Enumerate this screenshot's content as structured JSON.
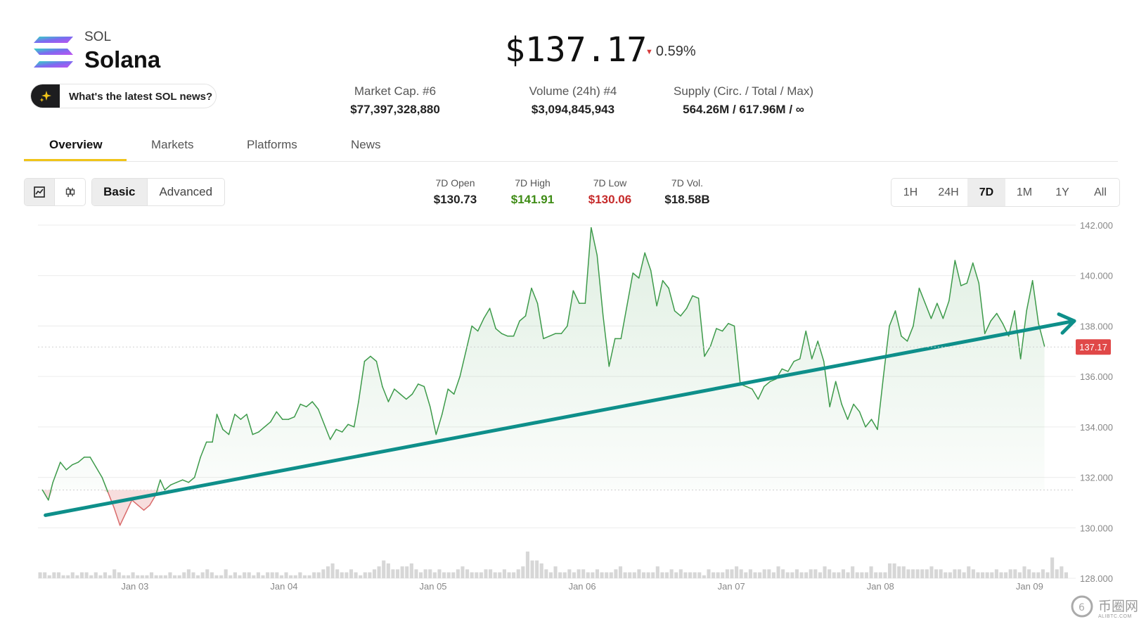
{
  "coin": {
    "symbol": "SOL",
    "name": "Solana",
    "news_prompt": "What's the latest SOL news?"
  },
  "price": {
    "value": "$137.17",
    "change": "0.59%",
    "direction": "down"
  },
  "stats": [
    {
      "label": "Market Cap. #6",
      "value": "$77,397,328,880"
    },
    {
      "label": "Volume (24h) #4",
      "value": "$3,094,845,943"
    },
    {
      "label": "Supply (Circ. / Total / Max)",
      "value": "564.26M / 617.96M / ∞"
    }
  ],
  "tabs": [
    "Overview",
    "Markets",
    "Platforms",
    "News"
  ],
  "active_tab": "Overview",
  "chart_type_toggle": {
    "icons": [
      "line-chart-icon",
      "candlestick-icon"
    ],
    "selected": "line-chart-icon"
  },
  "mode_toggle": {
    "options": [
      "Basic",
      "Advanced"
    ],
    "selected": "Basic"
  },
  "ohlc": [
    {
      "label": "7D Open",
      "value": "$130.73",
      "tone": "neutral"
    },
    {
      "label": "7D High",
      "value": "$141.91",
      "tone": "green"
    },
    {
      "label": "7D Low",
      "value": "$130.06",
      "tone": "red"
    },
    {
      "label": "7D Vol.",
      "value": "$18.58B",
      "tone": "neutral"
    }
  ],
  "ranges": [
    "1H",
    "24H",
    "7D",
    "1M",
    "1Y",
    "All"
  ],
  "selected_range": "7D",
  "colors": {
    "up_line": "#3d9a4a",
    "down_line": "#d96b6b",
    "trend_arrow": "#0e8f8a",
    "price_tag": "#e04848",
    "tab_accent": "#f0c419",
    "high_green": "#3f8c16",
    "low_red": "#c62b2b"
  },
  "chart_data": {
    "type": "line",
    "title": "",
    "ylim": [
      128,
      142
    ],
    "y_ticks": [
      "142.000",
      "140.000",
      "138.000",
      "136.000",
      "134.000",
      "132.000",
      "130.000",
      "128.000"
    ],
    "x_ticks": [
      "Jan 03",
      "Jan 04",
      "Jan 05",
      "Jan 06",
      "Jan 07",
      "Jan 08",
      "Jan 09"
    ],
    "x_tick_positions": [
      1,
      2,
      3,
      4,
      5,
      6,
      7
    ],
    "xlim": [
      0.35,
      7.3
    ],
    "current_price_tag": "137.17",
    "baseline_price": 131.5,
    "grid": true,
    "series": [
      {
        "values": [
          [
            0.38,
            131.5
          ],
          [
            0.42,
            131.1
          ],
          [
            0.45,
            131.8
          ],
          [
            0.5,
            132.6
          ],
          [
            0.54,
            132.3
          ],
          [
            0.58,
            132.5
          ],
          [
            0.62,
            132.6
          ],
          [
            0.66,
            132.8
          ],
          [
            0.7,
            132.8
          ],
          [
            0.74,
            132.4
          ],
          [
            0.78,
            132.0
          ],
          [
            0.82,
            131.4
          ],
          [
            0.86,
            130.8
          ],
          [
            0.9,
            130.1
          ],
          [
            0.94,
            130.6
          ],
          [
            0.98,
            131.1
          ],
          [
            1.02,
            130.9
          ],
          [
            1.06,
            130.7
          ],
          [
            1.1,
            130.9
          ],
          [
            1.14,
            131.3
          ],
          [
            1.17,
            131.9
          ],
          [
            1.2,
            131.5
          ],
          [
            1.24,
            131.7
          ],
          [
            1.28,
            131.8
          ],
          [
            1.32,
            131.9
          ],
          [
            1.36,
            131.8
          ],
          [
            1.4,
            132.0
          ],
          [
            1.44,
            132.8
          ],
          [
            1.48,
            133.4
          ],
          [
            1.52,
            133.4
          ],
          [
            1.55,
            134.5
          ],
          [
            1.59,
            133.9
          ],
          [
            1.63,
            133.7
          ],
          [
            1.67,
            134.5
          ],
          [
            1.71,
            134.3
          ],
          [
            1.75,
            134.5
          ],
          [
            1.79,
            133.7
          ],
          [
            1.83,
            133.8
          ],
          [
            1.87,
            134.0
          ],
          [
            1.91,
            134.2
          ],
          [
            1.95,
            134.6
          ],
          [
            1.99,
            134.3
          ],
          [
            2.03,
            134.3
          ],
          [
            2.07,
            134.4
          ],
          [
            2.11,
            134.9
          ],
          [
            2.15,
            134.8
          ],
          [
            2.19,
            135.0
          ],
          [
            2.23,
            134.7
          ],
          [
            2.27,
            134.1
          ],
          [
            2.31,
            133.5
          ],
          [
            2.35,
            133.9
          ],
          [
            2.39,
            133.8
          ],
          [
            2.43,
            134.1
          ],
          [
            2.47,
            134.0
          ],
          [
            2.5,
            135.0
          ],
          [
            2.54,
            136.6
          ],
          [
            2.58,
            136.8
          ],
          [
            2.62,
            136.6
          ],
          [
            2.66,
            135.6
          ],
          [
            2.7,
            135.0
          ],
          [
            2.74,
            135.5
          ],
          [
            2.78,
            135.3
          ],
          [
            2.82,
            135.1
          ],
          [
            2.86,
            135.3
          ],
          [
            2.9,
            135.7
          ],
          [
            2.94,
            135.6
          ],
          [
            2.98,
            134.8
          ],
          [
            3.02,
            133.7
          ],
          [
            3.06,
            134.5
          ],
          [
            3.1,
            135.5
          ],
          [
            3.14,
            135.3
          ],
          [
            3.18,
            136.0
          ],
          [
            3.22,
            137.0
          ],
          [
            3.26,
            138.0
          ],
          [
            3.3,
            137.8
          ],
          [
            3.34,
            138.3
          ],
          [
            3.38,
            138.7
          ],
          [
            3.42,
            137.9
          ],
          [
            3.46,
            137.7
          ],
          [
            3.5,
            137.6
          ],
          [
            3.54,
            137.6
          ],
          [
            3.58,
            138.2
          ],
          [
            3.62,
            138.4
          ],
          [
            3.66,
            139.5
          ],
          [
            3.7,
            138.9
          ],
          [
            3.74,
            137.5
          ],
          [
            3.78,
            137.6
          ],
          [
            3.82,
            137.7
          ],
          [
            3.86,
            137.7
          ],
          [
            3.9,
            138.0
          ],
          [
            3.94,
            139.4
          ],
          [
            3.98,
            138.9
          ],
          [
            4.02,
            138.9
          ],
          [
            4.06,
            141.9
          ],
          [
            4.1,
            140.8
          ],
          [
            4.14,
            138.4
          ],
          [
            4.18,
            136.4
          ],
          [
            4.22,
            137.5
          ],
          [
            4.26,
            137.5
          ],
          [
            4.3,
            138.8
          ],
          [
            4.34,
            140.1
          ],
          [
            4.38,
            139.9
          ],
          [
            4.42,
            140.9
          ],
          [
            4.46,
            140.2
          ],
          [
            4.5,
            138.8
          ],
          [
            4.54,
            139.8
          ],
          [
            4.58,
            139.5
          ],
          [
            4.62,
            138.6
          ],
          [
            4.66,
            138.4
          ],
          [
            4.7,
            138.7
          ],
          [
            4.74,
            139.2
          ],
          [
            4.78,
            139.1
          ],
          [
            4.82,
            136.8
          ],
          [
            4.86,
            137.2
          ],
          [
            4.9,
            137.9
          ],
          [
            4.94,
            137.8
          ],
          [
            4.98,
            138.1
          ],
          [
            5.02,
            138.0
          ],
          [
            5.06,
            135.7
          ],
          [
            5.1,
            135.6
          ],
          [
            5.14,
            135.5
          ],
          [
            5.18,
            135.1
          ],
          [
            5.22,
            135.6
          ],
          [
            5.26,
            135.8
          ],
          [
            5.3,
            135.9
          ],
          [
            5.34,
            136.3
          ],
          [
            5.38,
            136.2
          ],
          [
            5.42,
            136.6
          ],
          [
            5.46,
            136.7
          ],
          [
            5.5,
            137.8
          ],
          [
            5.54,
            136.7
          ],
          [
            5.58,
            137.4
          ],
          [
            5.62,
            136.6
          ],
          [
            5.66,
            134.8
          ],
          [
            5.7,
            135.8
          ],
          [
            5.74,
            134.9
          ],
          [
            5.78,
            134.3
          ],
          [
            5.82,
            134.9
          ],
          [
            5.86,
            134.6
          ],
          [
            5.9,
            134.0
          ],
          [
            5.94,
            134.3
          ],
          [
            5.98,
            133.9
          ],
          [
            6.02,
            136.0
          ],
          [
            6.06,
            138.0
          ],
          [
            6.1,
            138.6
          ],
          [
            6.14,
            137.6
          ],
          [
            6.18,
            137.4
          ],
          [
            6.22,
            138.0
          ],
          [
            6.26,
            139.5
          ],
          [
            6.3,
            138.9
          ],
          [
            6.34,
            138.3
          ],
          [
            6.38,
            138.9
          ],
          [
            6.42,
            138.3
          ],
          [
            6.46,
            139.0
          ],
          [
            6.5,
            140.6
          ],
          [
            6.54,
            139.6
          ],
          [
            6.58,
            139.7
          ],
          [
            6.62,
            140.5
          ],
          [
            6.66,
            139.7
          ],
          [
            6.7,
            137.7
          ],
          [
            6.74,
            138.2
          ],
          [
            6.78,
            138.5
          ],
          [
            6.82,
            138.1
          ],
          [
            6.86,
            137.6
          ],
          [
            6.9,
            138.6
          ],
          [
            6.94,
            136.7
          ],
          [
            6.98,
            138.6
          ],
          [
            7.02,
            139.8
          ],
          [
            7.06,
            138.1
          ],
          [
            7.1,
            137.2
          ]
        ]
      },
      {
        "type": "trend_arrow",
        "values": [
          [
            0.4,
            130.5
          ],
          [
            7.3,
            138.2
          ]
        ]
      },
      {
        "type": "bar",
        "name_hint": "volume",
        "values": [
          2,
          2,
          1,
          2,
          2,
          1,
          1,
          2,
          1,
          2,
          2,
          1,
          2,
          1,
          2,
          1,
          3,
          2,
          1,
          1,
          2,
          1,
          1,
          1,
          2,
          1,
          1,
          1,
          2,
          1,
          1,
          2,
          3,
          2,
          1,
          2,
          3,
          2,
          1,
          1,
          3,
          1,
          2,
          1,
          2,
          2,
          1,
          2,
          1,
          2,
          2,
          2,
          1,
          2,
          1,
          1,
          2,
          1,
          1,
          2,
          2,
          3,
          4,
          5,
          3,
          2,
          2,
          3,
          2,
          1,
          2,
          2,
          3,
          4,
          6,
          5,
          3,
          3,
          4,
          4,
          5,
          3,
          2,
          3,
          3,
          2,
          3,
          2,
          2,
          2,
          3,
          4,
          3,
          2,
          2,
          2,
          3,
          3,
          2,
          2,
          3,
          2,
          2,
          3,
          4,
          9,
          6,
          6,
          5,
          3,
          2,
          4,
          2,
          2,
          3,
          2,
          3,
          3,
          2,
          2,
          3,
          2,
          2,
          2,
          3,
          4,
          2,
          2,
          2,
          3,
          2,
          2,
          2,
          4,
          2,
          2,
          3,
          2,
          3,
          2,
          2,
          2,
          2,
          1,
          3,
          2,
          2,
          2,
          3,
          3,
          4,
          3,
          2,
          3,
          2,
          2,
          3,
          3,
          2,
          4,
          3,
          2,
          2,
          3,
          2,
          2,
          3,
          3,
          2,
          4,
          3,
          2,
          2,
          3,
          2,
          4,
          2,
          2,
          2,
          4,
          2,
          2,
          2,
          5,
          5,
          4,
          4,
          3,
          3,
          3,
          3,
          3,
          4,
          3,
          3,
          2,
          2,
          3,
          3,
          2,
          4,
          3,
          2,
          2,
          2,
          2,
          3,
          2,
          2,
          3,
          3,
          2,
          4,
          3,
          2,
          2,
          3,
          2,
          7,
          3,
          4,
          2
        ]
      }
    ]
  },
  "watermark": {
    "cn": "币圈网",
    "en": "ALIBTC.COM"
  }
}
